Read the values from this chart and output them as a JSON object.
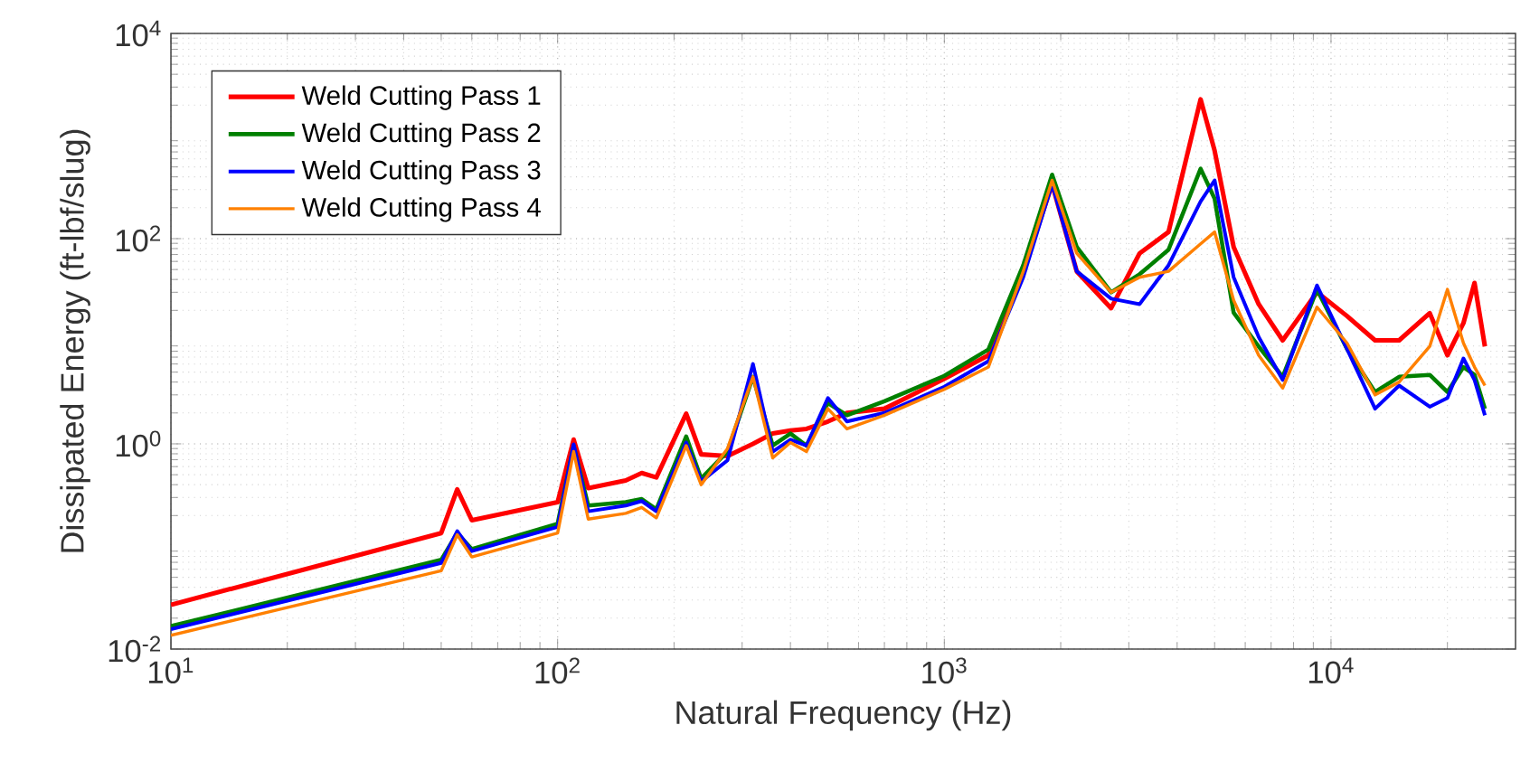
{
  "chart_data": {
    "type": "line",
    "xlabel": "Natural Frequency (Hz)",
    "ylabel": "Dissipated Energy (ft-lbf/slug)",
    "log": "xy",
    "grid": true,
    "legend": "top left",
    "line_style": "solid",
    "xlim": [
      10,
      30000
    ],
    "ylim": [
      0.01,
      10000
    ],
    "xticks": [
      {
        "value": 10,
        "label": "10$^{1}$"
      },
      {
        "value": 100,
        "label": "10$^{2}$"
      },
      {
        "value": 1000,
        "label": "10$^{3}$"
      },
      {
        "value": 10000,
        "label": "10$^{4}$"
      }
    ],
    "yticks": [
      {
        "value": 0.01,
        "label": "10$^{-2}$"
      },
      {
        "value": 1,
        "label": "10$^{0}$"
      },
      {
        "value": 100,
        "label": "10$^{2}$"
      },
      {
        "value": 10000,
        "label": "10$^{4}$"
      }
    ],
    "x": [
      10,
      50,
      55,
      60,
      100,
      110,
      120,
      150,
      165,
      180,
      215,
      235,
      275,
      320,
      360,
      400,
      440,
      500,
      560,
      700,
      1000,
      1300,
      1600,
      1900,
      2200,
      2700,
      3200,
      3800,
      4600,
      5000,
      5600,
      6500,
      7500,
      9200,
      11000,
      13000,
      15000,
      18000,
      20000,
      22000,
      23500,
      25000
    ],
    "series": [
      {
        "name": "Weld Cutting Pass 1",
        "color": "#ff0000",
        "values": [
          0.027,
          0.135,
          0.36,
          0.18,
          0.27,
          1.1,
          0.37,
          0.44,
          0.52,
          0.47,
          1.97,
          0.79,
          0.76,
          1.0,
          1.26,
          1.35,
          1.4,
          1.65,
          2.0,
          2.2,
          4.3,
          7.3,
          48,
          340,
          48,
          21,
          72,
          116,
          2280,
          720,
          83,
          23,
          10.2,
          30,
          17.6,
          10.2,
          10.2,
          18.8,
          7.3,
          15,
          37,
          8.9
        ]
      },
      {
        "name": "Weld Cutting Pass 2",
        "color": "#008000",
        "values": [
          0.0167,
          0.074,
          0.135,
          0.094,
          0.166,
          0.96,
          0.25,
          0.27,
          0.29,
          0.23,
          1.18,
          0.46,
          0.84,
          4.5,
          0.96,
          1.26,
          0.96,
          2.5,
          1.9,
          2.6,
          4.6,
          8.3,
          55,
          420,
          83,
          30,
          45,
          78,
          480,
          245,
          19,
          8.9,
          4.5,
          32,
          8.4,
          3.2,
          4.5,
          4.7,
          3.2,
          5.6,
          4.7,
          2.2
        ]
      },
      {
        "name": "Weld Cutting Pass 3",
        "color": "#0000ff",
        "values": [
          0.0156,
          0.069,
          0.141,
          0.09,
          0.155,
          0.99,
          0.22,
          0.25,
          0.277,
          0.22,
          1.03,
          0.43,
          0.69,
          6.0,
          0.84,
          1.1,
          0.96,
          2.8,
          1.65,
          2.0,
          3.6,
          6.4,
          42,
          340,
          48,
          26,
          23,
          55,
          230,
          370,
          42,
          11,
          4.2,
          35,
          8.4,
          2.2,
          3.7,
          2.3,
          2.8,
          6.8,
          4.2,
          1.9
        ]
      },
      {
        "name": "Weld Cutting Pass 4",
        "color": "#ff8000",
        "values": [
          0.0136,
          0.058,
          0.13,
          0.079,
          0.135,
          0.84,
          0.185,
          0.21,
          0.24,
          0.19,
          0.96,
          0.4,
          0.9,
          4.5,
          0.73,
          1.03,
          0.84,
          2.2,
          1.4,
          1.9,
          3.4,
          5.6,
          48,
          370,
          72,
          30,
          42,
          48,
          89,
          116,
          25,
          7.3,
          3.5,
          21.5,
          9.6,
          3.0,
          4.0,
          8.9,
          32,
          9.6,
          5.6,
          3.7
        ]
      }
    ]
  }
}
